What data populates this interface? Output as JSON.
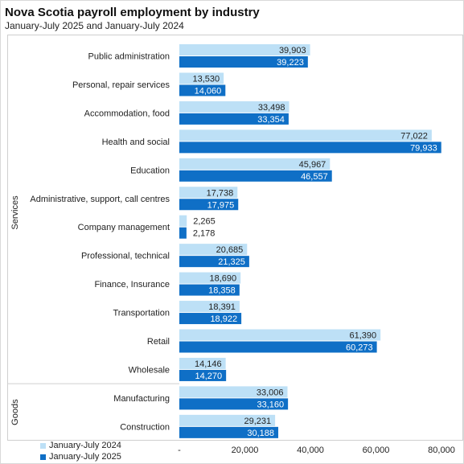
{
  "title": "Nova Scotia payroll employment  by industry",
  "subtitle": "January-July 2025 and January-July 2024",
  "colors": {
    "series_2024": "#bde0f6",
    "series_2025": "#0f6fc6"
  },
  "chart_data": {
    "type": "bar",
    "orientation": "horizontal",
    "categories": [
      "Public administration",
      "Personal, repair services",
      "Accommodation, food",
      "Health and social",
      "Education",
      "Administrative, support, call centres",
      "Company management",
      "Professional, technical",
      "Finance, Insurance",
      "Transportation",
      "Retail",
      "Wholesale",
      "Manufacturing",
      "Construction"
    ],
    "groups": [
      {
        "name": "Services",
        "count": 12
      },
      {
        "name": "Goods",
        "count": 2
      }
    ],
    "series": [
      {
        "name": "January-July 2024",
        "values": [
          39903,
          13530,
          33498,
          77022,
          45967,
          17738,
          2265,
          20685,
          18690,
          18391,
          61390,
          14146,
          33006,
          29231
        ],
        "labels": [
          "39,903",
          "13,530",
          "33,498",
          "77,022",
          "45,967",
          "17,738",
          "2,265",
          "20,685",
          "18,690",
          "18,391",
          "61,390",
          "14,146",
          "33,006",
          "29,231"
        ]
      },
      {
        "name": "January-July 2025",
        "values": [
          39223,
          14060,
          33354,
          79933,
          46557,
          17975,
          2178,
          21325,
          18358,
          18922,
          60273,
          14270,
          33160,
          30188
        ],
        "labels": [
          "39,223",
          "14,060",
          "33,354",
          "79,933",
          "46,557",
          "17,975",
          "2,178",
          "21,325",
          "18,358",
          "18,922",
          "60,273",
          "14,270",
          "33,160",
          "30,188"
        ]
      }
    ],
    "xlim": [
      0,
      80000
    ],
    "xticks": [
      0,
      20000,
      40000,
      60000,
      80000
    ],
    "xtick_labels": [
      "-",
      "20,000",
      "40,000",
      "60,000",
      "80,000"
    ],
    "grid": false,
    "legend_position": "bottom-left"
  }
}
